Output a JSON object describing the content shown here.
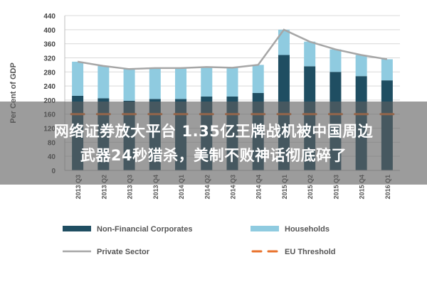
{
  "chart_data": {
    "type": "bar",
    "stacked": true,
    "ylabel": "Per Cent of GDP",
    "ylim": [
      0,
      440
    ],
    "yticks": [
      0,
      40,
      80,
      120,
      160,
      200,
      240,
      280,
      320,
      360,
      400,
      440
    ],
    "categories": [
      "2013 Q3",
      "2013 Q2",
      "2013 Q3",
      "2013 Q4",
      "2014 Q1",
      "2014 Q2",
      "2014 Q3",
      "2014 Q4",
      "2015 Q1",
      "2015 Q2",
      "2015 Q3",
      "2015 Q4",
      "2016 Q1"
    ],
    "grid": true,
    "legend_position": "bottom",
    "series": [
      {
        "name": "Non-Financial Corporates",
        "kind": "bar",
        "color": "#1f4e62",
        "values": [
          212,
          205,
          198,
          203,
          203,
          210,
          210,
          220,
          328,
          296,
          280,
          268,
          256
        ]
      },
      {
        "name": "Households",
        "kind": "bar",
        "color": "#8fcbe0",
        "values": [
          97,
          92,
          90,
          88,
          88,
          84,
          82,
          80,
          72,
          70,
          64,
          60,
          60
        ]
      },
      {
        "name": "Private Sector",
        "kind": "line",
        "color": "#a6a6a6",
        "values": [
          309,
          297,
          288,
          291,
          291,
          294,
          292,
          300,
          400,
          366,
          344,
          328,
          316
        ]
      },
      {
        "name": "EU Threshold",
        "kind": "line",
        "style": "dashed",
        "color": "#e8702a",
        "values": [
          160,
          160,
          160,
          160,
          160,
          160,
          160,
          160,
          160,
          160,
          160,
          160,
          160
        ]
      }
    ]
  },
  "overlay": {
    "line1": "网络证券放大平台 1.35亿王牌战机被中国周边",
    "line2": "武器24秒猎杀，美制不败神话彻底碎了"
  }
}
